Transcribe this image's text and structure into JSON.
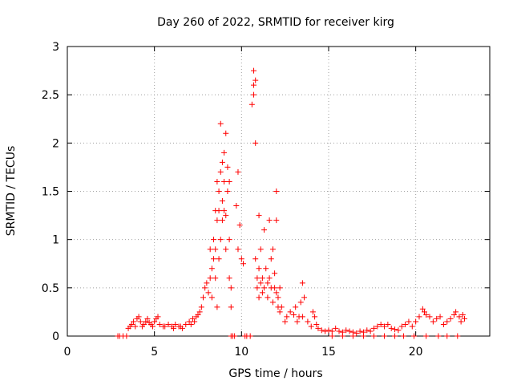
{
  "chart_data": {
    "type": "scatter",
    "title": "Day 260 of 2022, SRMTID for receiver kirg",
    "xlabel": "GPS time / hours",
    "ylabel": "SRMTID / TECUs",
    "xlim": [
      0,
      24.25
    ],
    "ylim": [
      0,
      3
    ],
    "xticks": [
      0,
      5,
      10,
      15,
      20
    ],
    "yticks": [
      0,
      0.5,
      1,
      1.5,
      2,
      2.5,
      3
    ],
    "xtick_labels": [
      "0",
      "5",
      "10",
      "15",
      "20"
    ],
    "ytick_labels": [
      "0",
      "0.5",
      "1",
      "1.5",
      "2",
      "2.5",
      "3"
    ],
    "grid": true,
    "marker": "+",
    "series_color": "#ff0000",
    "series": [
      {
        "name": "SRMTID",
        "points": [
          [
            2.9,
            0
          ],
          [
            3.0,
            0
          ],
          [
            3.2,
            0
          ],
          [
            3.4,
            0
          ],
          [
            3.5,
            0.08
          ],
          [
            3.6,
            0.1
          ],
          [
            3.7,
            0.12
          ],
          [
            3.8,
            0.15
          ],
          [
            3.9,
            0.1
          ],
          [
            4.0,
            0.18
          ],
          [
            4.1,
            0.2
          ],
          [
            4.2,
            0.15
          ],
          [
            4.3,
            0.1
          ],
          [
            4.4,
            0.12
          ],
          [
            4.5,
            0.15
          ],
          [
            4.6,
            0.18
          ],
          [
            4.7,
            0.14
          ],
          [
            4.8,
            0.12
          ],
          [
            4.9,
            0.1
          ],
          [
            5.0,
            0.15
          ],
          [
            5.1,
            0.18
          ],
          [
            5.2,
            0.2
          ],
          [
            5.3,
            0.12
          ],
          [
            5.5,
            0.1
          ],
          [
            5.6,
            0.1
          ],
          [
            5.8,
            0.12
          ],
          [
            6.0,
            0.1
          ],
          [
            6.1,
            0.08
          ],
          [
            6.2,
            0.12
          ],
          [
            6.4,
            0.1
          ],
          [
            6.5,
            0.1
          ],
          [
            6.6,
            0.08
          ],
          [
            6.8,
            0.12
          ],
          [
            7.0,
            0.15
          ],
          [
            7.1,
            0.12
          ],
          [
            7.2,
            0.18
          ],
          [
            7.3,
            0.15
          ],
          [
            7.4,
            0.2
          ],
          [
            7.5,
            0.22
          ],
          [
            7.6,
            0.25
          ],
          [
            7.7,
            0.3
          ],
          [
            7.8,
            0.4
          ],
          [
            7.9,
            0.5
          ],
          [
            8.0,
            0.55
          ],
          [
            8.1,
            0.45
          ],
          [
            8.2,
            0.6
          ],
          [
            8.2,
            0.9
          ],
          [
            8.3,
            0.7
          ],
          [
            8.3,
            0.4
          ],
          [
            8.4,
            1.0
          ],
          [
            8.4,
            0.8
          ],
          [
            8.5,
            1.3
          ],
          [
            8.5,
            0.9
          ],
          [
            8.5,
            0.6
          ],
          [
            8.6,
            1.2
          ],
          [
            8.6,
            1.6
          ],
          [
            8.6,
            0.3
          ],
          [
            8.7,
            1.5
          ],
          [
            8.7,
            1.3
          ],
          [
            8.7,
            0.8
          ],
          [
            8.8,
            2.2
          ],
          [
            8.8,
            1.0
          ],
          [
            8.8,
            1.7
          ],
          [
            8.9,
            1.4
          ],
          [
            8.9,
            1.2
          ],
          [
            8.9,
            1.8
          ],
          [
            9.0,
            1.6
          ],
          [
            9.0,
            1.3
          ],
          [
            9.0,
            1.9
          ],
          [
            9.1,
            2.1
          ],
          [
            9.1,
            1.25
          ],
          [
            9.1,
            0.9
          ],
          [
            9.2,
            1.75
          ],
          [
            9.2,
            1.5
          ],
          [
            9.3,
            1.0
          ],
          [
            9.3,
            1.6
          ],
          [
            9.3,
            0.6
          ],
          [
            9.4,
            0.5
          ],
          [
            9.4,
            0.3
          ],
          [
            9.4,
            0
          ],
          [
            9.5,
            0
          ],
          [
            9.6,
            0
          ],
          [
            9.7,
            1.35
          ],
          [
            9.8,
            1.7
          ],
          [
            9.8,
            0.9
          ],
          [
            9.9,
            1.15
          ],
          [
            10.0,
            0.8
          ],
          [
            10.1,
            0.75
          ],
          [
            10.2,
            0
          ],
          [
            10.3,
            0
          ],
          [
            10.5,
            0
          ],
          [
            10.6,
            2.4
          ],
          [
            10.7,
            2.75
          ],
          [
            10.7,
            2.6
          ],
          [
            10.7,
            2.5
          ],
          [
            10.8,
            2.0
          ],
          [
            10.8,
            2.65
          ],
          [
            10.8,
            0.8
          ],
          [
            10.9,
            0.6
          ],
          [
            10.9,
            0.5
          ],
          [
            11.0,
            0.7
          ],
          [
            11.0,
            1.25
          ],
          [
            11.0,
            0.4
          ],
          [
            11.1,
            0.55
          ],
          [
            11.1,
            0.9
          ],
          [
            11.2,
            0.6
          ],
          [
            11.2,
            0.45
          ],
          [
            11.3,
            1.1
          ],
          [
            11.3,
            0.5
          ],
          [
            11.4,
            0.7
          ],
          [
            11.5,
            0.55
          ],
          [
            11.5,
            0.4
          ],
          [
            11.6,
            1.2
          ],
          [
            11.6,
            0.6
          ],
          [
            11.7,
            0.8
          ],
          [
            11.7,
            0.5
          ],
          [
            11.8,
            0.9
          ],
          [
            11.8,
            0.35
          ],
          [
            11.9,
            0.5
          ],
          [
            11.9,
            0.65
          ],
          [
            12.0,
            1.5
          ],
          [
            12.0,
            1.2
          ],
          [
            12.0,
            0.45
          ],
          [
            12.1,
            0.4
          ],
          [
            12.1,
            0.3
          ],
          [
            12.2,
            0.5
          ],
          [
            12.2,
            0.25
          ],
          [
            12.3,
            0.3
          ],
          [
            12.5,
            0.15
          ],
          [
            12.6,
            0.2
          ],
          [
            12.8,
            0.25
          ],
          [
            13.0,
            0.22
          ],
          [
            13.1,
            0.3
          ],
          [
            13.2,
            0.15
          ],
          [
            13.3,
            0.2
          ],
          [
            13.4,
            0.35
          ],
          [
            13.5,
            0.55
          ],
          [
            13.5,
            0.2
          ],
          [
            13.6,
            0.4
          ],
          [
            13.8,
            0.15
          ],
          [
            14.0,
            0.1
          ],
          [
            14.1,
            0.25
          ],
          [
            14.2,
            0.2
          ],
          [
            14.3,
            0.12
          ],
          [
            14.4,
            0.08
          ],
          [
            14.6,
            0.06
          ],
          [
            14.8,
            0.05
          ],
          [
            15.0,
            0.06
          ],
          [
            15.2,
            0.05
          ],
          [
            15.4,
            0.08
          ],
          [
            15.6,
            0.05
          ],
          [
            15.8,
            0.04
          ],
          [
            16.0,
            0.06
          ],
          [
            16.2,
            0.05
          ],
          [
            16.4,
            0.04
          ],
          [
            16.6,
            0.03
          ],
          [
            16.8,
            0.05
          ],
          [
            17.0,
            0.04
          ],
          [
            17.2,
            0.06
          ],
          [
            17.4,
            0.05
          ],
          [
            17.6,
            0.08
          ],
          [
            17.8,
            0.1
          ],
          [
            18.0,
            0.12
          ],
          [
            18.2,
            0.1
          ],
          [
            18.4,
            0.12
          ],
          [
            18.6,
            0.08
          ],
          [
            18.8,
            0.07
          ],
          [
            19.0,
            0.06
          ],
          [
            19.2,
            0.1
          ],
          [
            19.4,
            0.12
          ],
          [
            19.6,
            0.15
          ],
          [
            19.8,
            0.1
          ],
          [
            20.0,
            0.15
          ],
          [
            20.2,
            0.2
          ],
          [
            20.4,
            0.28
          ],
          [
            20.5,
            0.25
          ],
          [
            20.6,
            0.22
          ],
          [
            20.8,
            0.2
          ],
          [
            21.0,
            0.15
          ],
          [
            21.2,
            0.18
          ],
          [
            21.4,
            0.2
          ],
          [
            21.6,
            0.12
          ],
          [
            21.8,
            0.15
          ],
          [
            22.0,
            0.18
          ],
          [
            22.2,
            0.22
          ],
          [
            22.3,
            0.25
          ],
          [
            22.5,
            0.2
          ],
          [
            22.6,
            0.15
          ],
          [
            22.7,
            0.22
          ],
          [
            22.8,
            0.18
          ],
          [
            15.2,
            0
          ],
          [
            15.8,
            0
          ],
          [
            16.4,
            0
          ],
          [
            17.0,
            0
          ],
          [
            17.6,
            0
          ],
          [
            18.2,
            0
          ],
          [
            18.8,
            0
          ],
          [
            19.3,
            0
          ],
          [
            19.9,
            0
          ],
          [
            20.6,
            0
          ],
          [
            21.3,
            0
          ],
          [
            21.8,
            0
          ],
          [
            22.4,
            0
          ]
        ]
      }
    ]
  }
}
